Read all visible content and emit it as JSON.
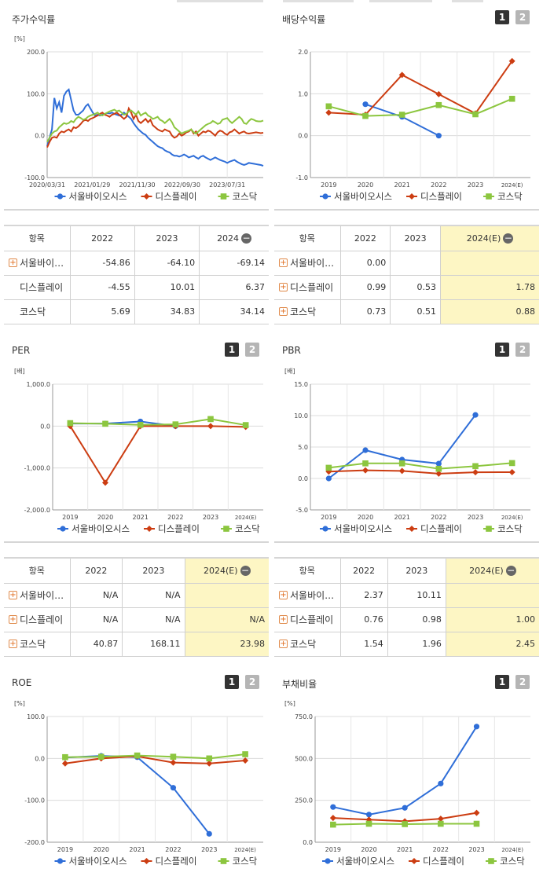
{
  "colors": {
    "series": [
      "#2f6ed8",
      "#cc3d12",
      "#8cc63f"
    ],
    "highlight": "#fdf6c4",
    "grid": "#d9d9d9"
  },
  "legend": [
    "서울바이오시스",
    "디스플레이",
    "코스닥"
  ],
  "stock_return": {
    "title": "주가수익률",
    "unit": "[%]",
    "table": {
      "header": [
        "항목",
        "2022",
        "2023",
        "2024"
      ],
      "rows": [
        {
          "name": "서울바이…",
          "plus": true,
          "values": [
            "-54.86",
            "-64.10",
            "-69.14"
          ]
        },
        {
          "name": "디스플레이",
          "plus": false,
          "values": [
            "-4.55",
            "10.01",
            "6.37"
          ]
        },
        {
          "name": "코스닥",
          "plus": false,
          "values": [
            "5.69",
            "34.83",
            "34.14"
          ]
        }
      ]
    }
  },
  "dividend": {
    "title": "배당수익률",
    "btn1": "1",
    "btn2": "2",
    "table": {
      "header": [
        "항목",
        "2022",
        "2023",
        "2024(E)"
      ],
      "rows": [
        {
          "name": "서울바이…",
          "plus": true,
          "values": [
            "0.00",
            "",
            ""
          ]
        },
        {
          "name": "디스플레이",
          "plus": true,
          "values": [
            "0.99",
            "0.53",
            "1.78"
          ]
        },
        {
          "name": "코스닥",
          "plus": true,
          "values": [
            "0.73",
            "0.51",
            "0.88"
          ]
        }
      ]
    }
  },
  "per": {
    "title": "PER",
    "btn1": "1",
    "btn2": "2",
    "table": {
      "header": [
        "항목",
        "2022",
        "2023",
        "2024(E)"
      ],
      "rows": [
        {
          "name": "서울바이…",
          "plus": true,
          "values": [
            "N/A",
            "N/A",
            ""
          ]
        },
        {
          "name": "디스플레이",
          "plus": true,
          "values": [
            "N/A",
            "N/A",
            "N/A"
          ]
        },
        {
          "name": "코스닥",
          "plus": true,
          "values": [
            "40.87",
            "168.11",
            "23.98"
          ]
        }
      ]
    }
  },
  "pbr": {
    "title": "PBR",
    "btn1": "1",
    "btn2": "2",
    "table": {
      "header": [
        "항목",
        "2022",
        "2023",
        "2024(E)"
      ],
      "rows": [
        {
          "name": "서울바이…",
          "plus": true,
          "values": [
            "2.37",
            "10.11",
            ""
          ]
        },
        {
          "name": "디스플레이",
          "plus": true,
          "values": [
            "0.76",
            "0.98",
            "1.00"
          ]
        },
        {
          "name": "코스닥",
          "plus": true,
          "values": [
            "1.54",
            "1.96",
            "2.45"
          ]
        }
      ]
    }
  },
  "roe": {
    "title": "ROE",
    "btn1": "1",
    "btn2": "2"
  },
  "debt": {
    "title": "부채비율",
    "btn1": "1",
    "btn2": "2"
  },
  "chart_data": [
    {
      "id": "stock_return",
      "type": "line",
      "ylabel": "[%]",
      "ylim": [
        -100,
        200
      ],
      "yticks": [
        "200.0",
        "100.0",
        "0.0",
        "-100.0"
      ],
      "xticklabels": [
        "2020/03/31",
        "2021/01/29",
        "2021/11/30",
        "2022/09/30",
        "2023/07/31"
      ],
      "grid": true,
      "legend_position": "bottom",
      "series": [
        {
          "name": "서울바이오시스",
          "values": [
            -25,
            -5,
            15,
            90,
            65,
            80,
            55,
            95,
            105,
            110,
            85,
            60,
            50,
            50,
            55,
            60,
            70,
            75,
            65,
            55,
            48,
            50,
            48,
            50,
            52,
            54,
            53,
            55,
            52,
            50,
            48,
            50,
            55,
            50,
            45,
            40,
            30,
            22,
            15,
            10,
            5,
            2,
            -5,
            -10,
            -15,
            -20,
            -25,
            -28,
            -30,
            -35,
            -38,
            -40,
            -45,
            -48,
            -48,
            -50,
            -48,
            -45,
            -48,
            -52,
            -50,
            -48,
            -52,
            -55,
            -50,
            -48,
            -52,
            -55,
            -58,
            -55,
            -52,
            -55,
            -58,
            -60,
            -62,
            -65,
            -62,
            -60,
            -58,
            -62,
            -65,
            -68,
            -70,
            -68,
            -65,
            -66,
            -67,
            -68,
            -69,
            -70,
            -72
          ]
        },
        {
          "name": "디스플레이",
          "values": [
            -28,
            -15,
            -5,
            -3,
            -5,
            5,
            10,
            8,
            12,
            15,
            10,
            20,
            18,
            22,
            28,
            35,
            38,
            35,
            40,
            42,
            45,
            48,
            52,
            55,
            50,
            48,
            45,
            50,
            52,
            55,
            50,
            45,
            40,
            45,
            65,
            55,
            40,
            50,
            35,
            30,
            35,
            40,
            32,
            38,
            25,
            20,
            15,
            12,
            10,
            15,
            12,
            10,
            0,
            -5,
            -2,
            5,
            0,
            3,
            8,
            10,
            15,
            5,
            10,
            0,
            5,
            10,
            8,
            12,
            10,
            5,
            0,
            8,
            12,
            10,
            5,
            2,
            8,
            10,
            15,
            10,
            5,
            8,
            10,
            6,
            5,
            6,
            7,
            8,
            7,
            6,
            7
          ]
        },
        {
          "name": "코스닥",
          "values": [
            -15,
            -5,
            5,
            10,
            12,
            20,
            25,
            30,
            28,
            30,
            35,
            32,
            40,
            45,
            42,
            38,
            40,
            45,
            48,
            50,
            52,
            55,
            50,
            48,
            52,
            55,
            58,
            60,
            62,
            58,
            60,
            55,
            50,
            52,
            58,
            60,
            55,
            50,
            58,
            48,
            52,
            55,
            48,
            45,
            40,
            42,
            45,
            38,
            35,
            30,
            35,
            40,
            32,
            20,
            15,
            10,
            5,
            8,
            10,
            12,
            15,
            8,
            5,
            10,
            15,
            20,
            25,
            28,
            30,
            35,
            32,
            28,
            30,
            38,
            40,
            42,
            35,
            30,
            35,
            40,
            45,
            40,
            30,
            28,
            35,
            40,
            38,
            35,
            34,
            34,
            36
          ]
        }
      ]
    },
    {
      "id": "dividend",
      "type": "line",
      "ylim": [
        -1,
        2
      ],
      "yticks": [
        "2.0",
        "1.0",
        "0.0",
        "-1.0"
      ],
      "categories": [
        "2019",
        "2020",
        "2021",
        "2022",
        "2023",
        "2024(E)"
      ],
      "grid": true,
      "legend_position": "bottom",
      "series": [
        {
          "name": "서울바이오시스",
          "values": [
            null,
            0.75,
            0.45,
            0.0,
            null,
            null
          ]
        },
        {
          "name": "디스플레이",
          "values": [
            0.55,
            0.5,
            1.45,
            0.99,
            0.53,
            1.78
          ]
        },
        {
          "name": "코스닥",
          "values": [
            0.7,
            0.47,
            0.5,
            0.73,
            0.51,
            0.88
          ]
        }
      ]
    },
    {
      "id": "per",
      "type": "line",
      "ylabel": "[배]",
      "ylim": [
        -2000,
        1000
      ],
      "yticks": [
        "1,000.0",
        "0.0",
        "-1,000.0",
        "-2,000.0"
      ],
      "categories": [
        "2019",
        "2020",
        "2021",
        "2022",
        "2023",
        "2024(E)"
      ],
      "grid": true,
      "legend_position": "bottom",
      "series": [
        {
          "name": "서울바이오시스",
          "values": [
            60,
            60,
            110,
            0,
            null,
            null
          ]
        },
        {
          "name": "디스플레이",
          "values": [
            0,
            -1350,
            0,
            0,
            0,
            -20
          ]
        },
        {
          "name": "코스닥",
          "values": [
            70,
            55,
            30,
            41,
            168,
            24
          ]
        }
      ]
    },
    {
      "id": "pbr",
      "type": "line",
      "ylabel": "[배]",
      "ylim": [
        -5,
        15
      ],
      "yticks": [
        "15.0",
        "10.0",
        "5.0",
        "0.0",
        "-5.0"
      ],
      "categories": [
        "2019",
        "2020",
        "2021",
        "2022",
        "2023",
        "2024(E)"
      ],
      "grid": true,
      "legend_position": "bottom",
      "series": [
        {
          "name": "서울바이오시스",
          "values": [
            0.0,
            4.5,
            3.0,
            2.37,
            10.11,
            null
          ]
        },
        {
          "name": "디스플레이",
          "values": [
            1.1,
            1.3,
            1.2,
            0.76,
            0.98,
            1.0
          ]
        },
        {
          "name": "코스닥",
          "values": [
            1.7,
            2.4,
            2.4,
            1.54,
            1.96,
            2.45
          ]
        }
      ]
    },
    {
      "id": "roe",
      "type": "line",
      "ylabel": "[%]",
      "ylim": [
        -200,
        100
      ],
      "yticks": [
        "100.0",
        "0.0",
        "-100.0",
        "-200.0"
      ],
      "categories": [
        "2019",
        "2020",
        "2021",
        "2022",
        "2023",
        "2024(E)"
      ],
      "grid": true,
      "legend_position": "bottom",
      "series": [
        {
          "name": "서울바이오시스",
          "values": [
            2,
            6,
            3,
            -70,
            -180,
            null
          ]
        },
        {
          "name": "디스플레이",
          "values": [
            -12,
            0,
            5,
            -10,
            -12,
            -5
          ]
        },
        {
          "name": "코스닥",
          "values": [
            3,
            4,
            7,
            4,
            0,
            10
          ]
        }
      ]
    },
    {
      "id": "debt",
      "type": "line",
      "ylabel": "[%]",
      "ylim": [
        0,
        750
      ],
      "yticks": [
        "750.0",
        "500.0",
        "250.0",
        "0.0"
      ],
      "categories": [
        "2019",
        "2020",
        "2021",
        "2022",
        "2023",
        "2024(E)"
      ],
      "grid": true,
      "legend_position": "bottom",
      "series": [
        {
          "name": "서울바이오시스",
          "values": [
            210,
            165,
            205,
            350,
            690,
            null
          ]
        },
        {
          "name": "디스플레이",
          "values": [
            145,
            135,
            125,
            140,
            175,
            null
          ]
        },
        {
          "name": "코스닥",
          "values": [
            105,
            110,
            108,
            110,
            110,
            null
          ]
        }
      ]
    }
  ]
}
